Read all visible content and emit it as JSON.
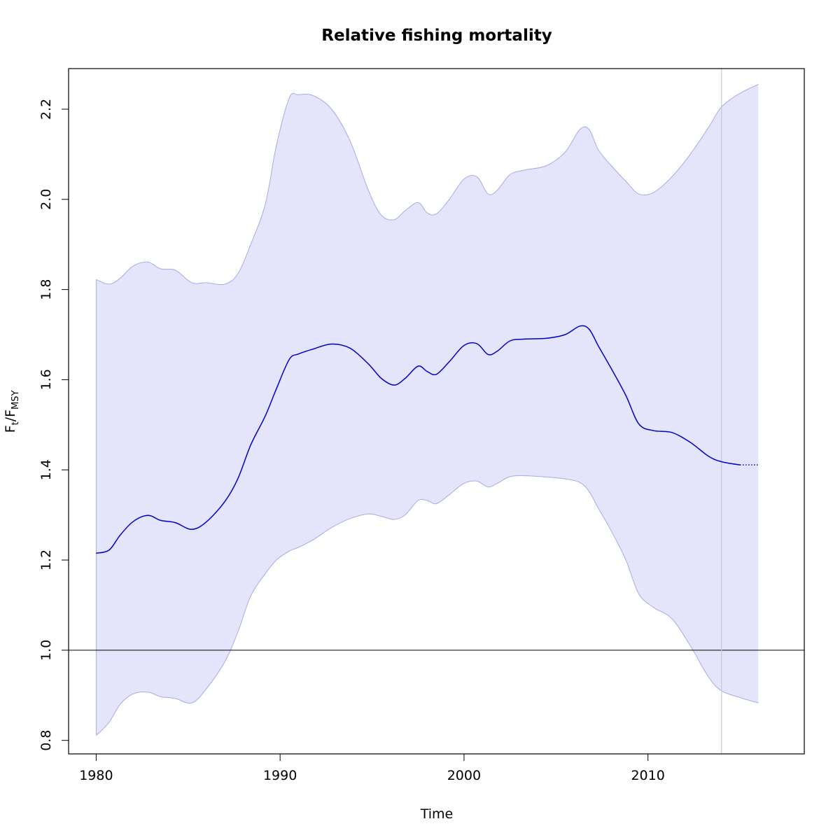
{
  "chart_data": {
    "type": "line",
    "title": "Relative fishing mortality",
    "xlabel": "Time",
    "ylabel_main": "F",
    "ylabel_sub1": "t",
    "ylabel_sep": "/F",
    "ylabel_sub2": "MSY",
    "xlim": [
      1978.5,
      2018.5
    ],
    "ylim": [
      0.77,
      2.29
    ],
    "x_ticks": [
      1980,
      1990,
      2000,
      2010
    ],
    "y_ticks": [
      0.8,
      1.0,
      1.2,
      1.4,
      1.6,
      1.8,
      2.0,
      2.2
    ],
    "reference_hline": 1.0,
    "reference_vline": 2014,
    "colors": {
      "band_fill": "#e4e4fb",
      "band_stroke": "#a9a9e6",
      "line": "#0000cc",
      "vline": "#c8c8d8",
      "axis": "#000000"
    },
    "series": [
      {
        "role": "estimate",
        "x": [
          1980,
          1980.7,
          1981.3,
          1982,
          1982.8,
          1983.5,
          1984.3,
          1985.2,
          1986,
          1987,
          1987.7,
          1988.4,
          1989.2,
          1989.8,
          1990.5,
          1991,
          1991.8,
          1992.8,
          1993.8,
          1994.8,
          1995.5,
          1996.2,
          1996.8,
          1997.5,
          1998,
          1998.5,
          1999.2,
          2000,
          2000.7,
          2001.3,
          2001.8,
          2002.5,
          2003.3,
          2004.5,
          2005.5,
          2006.3,
          2006.8,
          2007.3,
          2008,
          2008.8,
          2009.5,
          2010.3,
          2011.3,
          2012.3,
          2013.3,
          2014,
          2015
        ],
        "y": [
          1.215,
          1.222,
          1.255,
          1.285,
          1.299,
          1.288,
          1.283,
          1.268,
          1.285,
          1.33,
          1.38,
          1.455,
          1.52,
          1.58,
          1.645,
          1.657,
          1.668,
          1.679,
          1.67,
          1.635,
          1.603,
          1.588,
          1.603,
          1.63,
          1.618,
          1.612,
          1.64,
          1.676,
          1.68,
          1.656,
          1.663,
          1.686,
          1.69,
          1.692,
          1.7,
          1.719,
          1.712,
          1.675,
          1.625,
          1.565,
          1.502,
          1.487,
          1.483,
          1.461,
          1.43,
          1.418,
          1.411
        ]
      },
      {
        "role": "forecast",
        "x": [
          2015,
          2016
        ],
        "y": [
          1.411,
          1.411
        ]
      },
      {
        "role": "upper_ci",
        "x": [
          1980,
          1980.7,
          1981.3,
          1982,
          1982.8,
          1983.5,
          1984.3,
          1985.2,
          1986,
          1987,
          1987.7,
          1988.4,
          1989.2,
          1989.8,
          1990.5,
          1991,
          1991.8,
          1992.8,
          1993.8,
          1994.8,
          1995.5,
          1996.2,
          1996.8,
          1997.5,
          1998,
          1998.5,
          1999.2,
          2000,
          2000.7,
          2001.3,
          2001.8,
          2002.5,
          2003.3,
          2004.5,
          2005.5,
          2006.3,
          2006.8,
          2007.3,
          2008,
          2008.8,
          2009.5,
          2010.3,
          2011.3,
          2012.3,
          2013.3,
          2014,
          2015,
          2016
        ],
        "y": [
          1.822,
          1.812,
          1.825,
          1.852,
          1.861,
          1.846,
          1.843,
          1.815,
          1.815,
          1.812,
          1.835,
          1.9,
          1.99,
          2.12,
          2.225,
          2.232,
          2.23,
          2.2,
          2.13,
          2.02,
          1.965,
          1.955,
          1.975,
          1.993,
          1.97,
          1.968,
          2.0,
          2.045,
          2.05,
          2.012,
          2.02,
          2.055,
          2.065,
          2.075,
          2.105,
          2.155,
          2.155,
          2.11,
          2.075,
          2.04,
          2.012,
          2.015,
          2.05,
          2.1,
          2.16,
          2.205,
          2.235,
          2.255
        ]
      },
      {
        "role": "lower_ci",
        "x": [
          1980,
          1980.7,
          1981.3,
          1982,
          1982.8,
          1983.5,
          1984.3,
          1985.2,
          1986,
          1987,
          1987.7,
          1988.4,
          1989.2,
          1989.8,
          1990.5,
          1991,
          1991.8,
          1992.8,
          1993.8,
          1994.8,
          1995.5,
          1996.2,
          1996.8,
          1997.5,
          1998,
          1998.5,
          1999.2,
          2000,
          2000.7,
          2001.3,
          2001.8,
          2002.5,
          2003.3,
          2004.5,
          2005.5,
          2006.3,
          2006.8,
          2007.3,
          2008,
          2008.8,
          2009.5,
          2010.3,
          2011.3,
          2012.3,
          2013.3,
          2014,
          2015,
          2016
        ],
        "y": [
          0.811,
          0.84,
          0.88,
          0.903,
          0.907,
          0.897,
          0.893,
          0.883,
          0.915,
          0.975,
          1.04,
          1.12,
          1.17,
          1.2,
          1.22,
          1.228,
          1.245,
          1.272,
          1.292,
          1.302,
          1.297,
          1.29,
          1.3,
          1.332,
          1.332,
          1.325,
          1.345,
          1.37,
          1.375,
          1.362,
          1.37,
          1.385,
          1.387,
          1.384,
          1.38,
          1.372,
          1.352,
          1.315,
          1.265,
          1.2,
          1.125,
          1.095,
          1.07,
          1.01,
          0.94,
          0.91,
          0.895,
          0.883
        ]
      }
    ]
  }
}
